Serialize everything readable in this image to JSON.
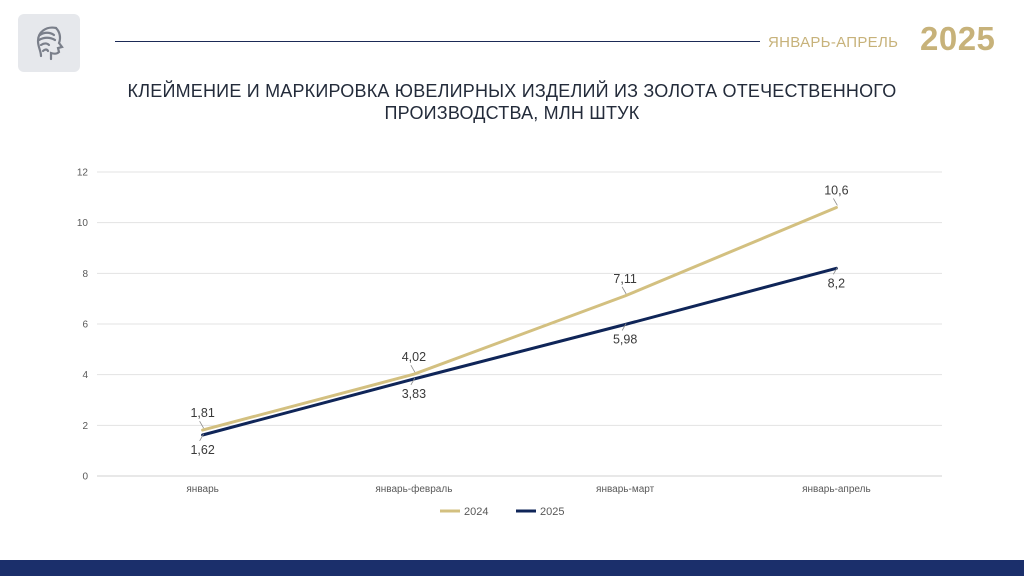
{
  "header": {
    "period": "ЯНВАРЬ-АПРЕЛЬ",
    "year": "2025"
  },
  "chart_data": {
    "type": "line",
    "title": "КЛЕЙМЕНИЕ И МАРКИРОВКА ЮВЕЛИРНЫХ ИЗДЕЛИЙ ИЗ ЗОЛОТА ОТЕЧЕСТВЕННОГО ПРОИЗВОДСТВА, МЛН ШТУК",
    "categories": [
      "январь",
      "январь-февраль",
      "январь-март",
      "январь-апрель"
    ],
    "ylim": [
      0,
      12
    ],
    "yticks": [
      "0",
      "2",
      "4",
      "6",
      "8",
      "10",
      "12"
    ],
    "series": [
      {
        "name": "2024",
        "values": [
          1.81,
          4.02,
          7.11,
          10.6
        ],
        "labels": [
          "1,81",
          "4,02",
          "7,11",
          "10,6"
        ],
        "color": "#d3c080"
      },
      {
        "name": "2025",
        "values": [
          1.62,
          3.83,
          5.98,
          8.2
        ],
        "labels": [
          "1,62",
          "3,83",
          "5,98",
          "8,2"
        ],
        "color": "#0f2558"
      }
    ],
    "grid": true,
    "legend": "bottom"
  },
  "colors": {
    "accent_gold": "#c7b27a",
    "brand_navy": "#1b2f6b"
  },
  "icons": {
    "logo": "profile-head-logo"
  }
}
